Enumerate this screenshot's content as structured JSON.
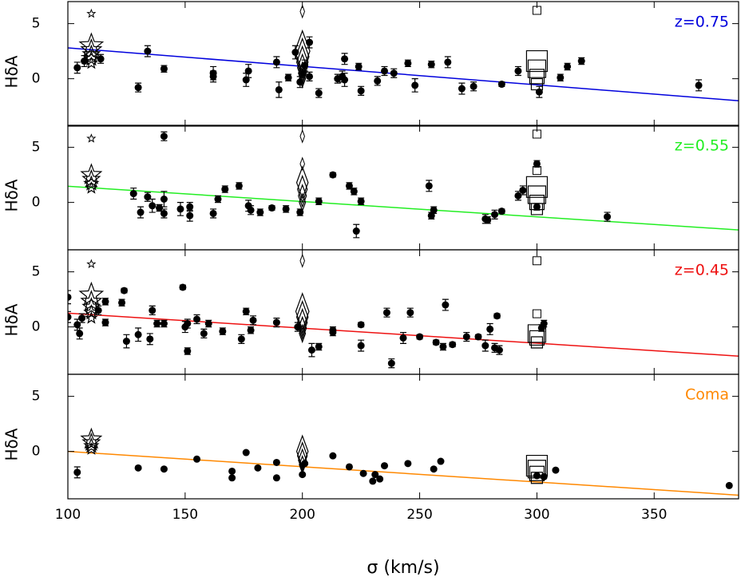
{
  "chart_data": [
    {
      "type": "scatter",
      "label": "z=0.75",
      "color": "#0000dd",
      "ylabel": "HδA",
      "xlim": [
        100,
        386
      ],
      "ylim": [
        -4.3,
        7.0
      ],
      "xticks": [
        100,
        150,
        200,
        250,
        300,
        350
      ],
      "yticks": [
        0,
        5
      ],
      "x": [
        104,
        107,
        114,
        130,
        134,
        141,
        162,
        162,
        176,
        177,
        189,
        190,
        194,
        197,
        199,
        200,
        201,
        203,
        203,
        207,
        215,
        217,
        218,
        218,
        224,
        225,
        232,
        235,
        239,
        245,
        248,
        255,
        262,
        268,
        273,
        285,
        292,
        301,
        310,
        313,
        319,
        369
      ],
      "values": [
        1.0,
        1.6,
        1.8,
        -0.8,
        2.5,
        0.9,
        0.5,
        0.2,
        -0.1,
        0.7,
        1.5,
        -1.0,
        0.1,
        2.4,
        -0.3,
        0.5,
        1.2,
        3.3,
        0.2,
        -1.3,
        0.0,
        0.2,
        1.8,
        -0.1,
        1.1,
        -1.1,
        -0.2,
        0.7,
        0.5,
        1.4,
        -0.6,
        1.3,
        1.5,
        -0.9,
        -0.7,
        -0.5,
        0.7,
        -1.2,
        0.1,
        1.1,
        1.6,
        -0.6
      ],
      "errors": [
        0.5,
        0.5,
        0.4,
        0.4,
        0.5,
        0.3,
        0.6,
        0.5,
        0.6,
        0.6,
        0.5,
        0.7,
        0.3,
        0.6,
        0.5,
        0.4,
        0.5,
        0.5,
        0.4,
        0.4,
        0.4,
        0.5,
        0.5,
        0.6,
        0.3,
        0.4,
        0.4,
        0.4,
        0.4,
        0.3,
        0.6,
        0.3,
        0.5,
        0.5,
        0.4,
        0.2,
        0.4,
        0.5,
        0.3,
        0.3,
        0.3,
        0.5
      ],
      "fit": {
        "x": [
          100,
          386
        ],
        "y": [
          2.8,
          -2.0
        ]
      },
      "stars": {
        "x": 110,
        "values": [
          1.4,
          1.8,
          2.2,
          2.6,
          3.0
        ],
        "outliers": [
          5.9
        ]
      },
      "diamonds": {
        "x": 200,
        "values": [
          0.0,
          0.5,
          1.0,
          1.5,
          2.0,
          2.5
        ],
        "outliers": [
          6.1
        ]
      },
      "squares": {
        "x": 300,
        "values": [
          -0.5,
          0.2,
          0.9,
          1.6
        ],
        "outliers": [
          6.2
        ]
      }
    },
    {
      "type": "scatter",
      "label": "z=0.55",
      "color": "#22ee22",
      "ylabel": "HδA",
      "xlim": [
        100,
        386
      ],
      "ylim": [
        -4.3,
        7.0
      ],
      "xticks": [
        100,
        150,
        200,
        250,
        300,
        350
      ],
      "yticks": [
        0,
        5
      ],
      "x": [
        128,
        131,
        134,
        136,
        139,
        141,
        141,
        141,
        148,
        152,
        152,
        162,
        164,
        167,
        173,
        177,
        178,
        182,
        187,
        193,
        199,
        207,
        213,
        220,
        222,
        223,
        225,
        254,
        255,
        256,
        278,
        279,
        282,
        285,
        292,
        294,
        300,
        300,
        330
      ],
      "values": [
        0.8,
        -0.9,
        0.5,
        -0.3,
        -0.5,
        0.3,
        -1.0,
        6.0,
        -0.6,
        -0.4,
        -1.2,
        -1.0,
        0.3,
        1.2,
        1.5,
        -0.3,
        -0.7,
        -0.9,
        -0.5,
        -0.6,
        -0.9,
        0.1,
        2.5,
        1.5,
        1.0,
        -2.6,
        0.1,
        1.5,
        -1.2,
        -0.7,
        -1.5,
        -1.6,
        -1.1,
        -0.8,
        0.6,
        1.1,
        3.5,
        -0.4,
        -1.3
      ],
      "errors": [
        0.5,
        0.5,
        0.4,
        0.6,
        0.3,
        0.7,
        0.4,
        0.4,
        0.6,
        0.4,
        0.5,
        0.4,
        0.3,
        0.3,
        0.3,
        0.5,
        0.4,
        0.3,
        0.2,
        0.3,
        0.3,
        0.3,
        0.2,
        0.3,
        0.3,
        0.6,
        0.3,
        0.5,
        0.3,
        0.3,
        0.4,
        0.3,
        0.4,
        0.2,
        0.4,
        0.4,
        0.3,
        0.3,
        0.4
      ],
      "fit": {
        "x": [
          100,
          386
        ],
        "y": [
          1.47,
          -2.5
        ]
      },
      "stars": {
        "x": 110,
        "values": [
          1.3,
          1.7,
          2.1,
          2.5
        ],
        "outliers": [
          5.8
        ]
      },
      "diamonds": {
        "x": 200,
        "values": [
          0.0,
          0.6,
          1.2,
          1.8
        ],
        "outliers": [
          3.5,
          6.0
        ]
      },
      "squares": {
        "x": 300,
        "values": [
          -0.6,
          0.0,
          0.7,
          1.4
        ],
        "outliers": [
          2.9,
          6.2
        ]
      }
    },
    {
      "type": "scatter",
      "label": "z=0.45",
      "color": "#ee1111",
      "ylabel": "HδA",
      "xlim": [
        100,
        386
      ],
      "ylim": [
        -4.3,
        7.0
      ],
      "xticks": [
        100,
        150,
        200,
        250,
        300,
        350
      ],
      "yticks": [
        0,
        5
      ],
      "x": [
        100,
        100,
        104,
        105,
        106,
        113,
        116,
        116,
        123,
        124,
        125,
        130,
        135,
        136,
        138,
        141,
        149,
        150,
        151,
        151,
        155,
        158,
        160,
        166,
        174,
        176,
        178,
        179,
        189,
        198,
        204,
        207,
        213,
        213,
        225,
        225,
        236,
        238,
        243,
        246,
        250,
        257,
        260,
        261,
        264,
        270,
        275,
        278,
        280,
        282,
        283,
        284,
        302,
        303
      ],
      "values": [
        2.7,
        0.9,
        0.2,
        -0.6,
        0.8,
        1.5,
        0.4,
        2.3,
        2.2,
        3.3,
        -1.3,
        -0.7,
        -1.1,
        1.5,
        0.3,
        0.3,
        3.6,
        0.0,
        -2.2,
        0.3,
        0.7,
        -0.6,
        0.3,
        -0.4,
        -1.1,
        1.4,
        -0.3,
        0.6,
        0.4,
        0.0,
        -2.1,
        -1.8,
        -0.3,
        -0.5,
        0.2,
        -1.7,
        1.3,
        -3.3,
        -1.0,
        1.3,
        -0.9,
        -1.4,
        -1.8,
        2.0,
        -1.6,
        -0.9,
        -0.9,
        -1.7,
        -0.2,
        -1.9,
        1.0,
        -2.1,
        -0.1,
        0.3
      ],
      "errors": [
        0.6,
        0.5,
        0.5,
        0.5,
        0.4,
        0.4,
        0.3,
        0.3,
        0.3,
        0.2,
        0.6,
        0.6,
        0.5,
        0.4,
        0.3,
        0.3,
        0.2,
        0.5,
        0.3,
        0.4,
        0.4,
        0.4,
        0.3,
        0.3,
        0.4,
        0.3,
        0.3,
        0.4,
        0.4,
        0.4,
        0.6,
        0.3,
        0.3,
        0.3,
        0.2,
        0.5,
        0.4,
        0.4,
        0.5,
        0.4,
        0.2,
        0.2,
        0.3,
        0.5,
        0.2,
        0.4,
        0.2,
        0.5,
        0.5,
        0.4,
        0.2,
        0.4,
        0.3,
        0.3
      ],
      "fit": {
        "x": [
          100,
          386
        ],
        "y": [
          1.25,
          -2.65
        ]
      },
      "stars": {
        "x": 110,
        "values": [
          0.8,
          1.3,
          1.8,
          2.3,
          2.9
        ],
        "outliers": [
          5.7
        ]
      },
      "diamonds": {
        "x": 200,
        "values": [
          -0.6,
          -0.1,
          0.4,
          0.9,
          1.4
        ],
        "outliers": [
          6.0
        ]
      },
      "squares": {
        "x": 300,
        "values": [
          -1.4,
          -1.0,
          -0.6
        ],
        "outliers": [
          1.2,
          6.0
        ]
      }
    },
    {
      "type": "scatter",
      "label": "Coma",
      "color": "#ff8800",
      "ylabel": "HδA",
      "xlabel": "σ (km/s)",
      "xlim": [
        100,
        386
      ],
      "ylim": [
        -4.3,
        7.0
      ],
      "xticks": [
        100,
        150,
        200,
        250,
        300,
        350
      ],
      "yticks": [
        0,
        5
      ],
      "x": [
        104,
        130,
        141,
        155,
        170,
        170,
        176,
        181,
        189,
        189,
        200,
        201,
        213,
        220,
        226,
        230,
        231,
        233,
        235,
        245,
        256,
        259,
        300,
        303,
        308,
        382
      ],
      "values": [
        -1.9,
        -1.5,
        -1.6,
        -0.7,
        -1.8,
        -2.4,
        -0.1,
        -1.5,
        -1.0,
        -2.4,
        -2.1,
        -1.1,
        -0.4,
        -1.4,
        -2.0,
        -2.7,
        -2.1,
        -2.5,
        -1.3,
        -1.1,
        -1.6,
        -0.9,
        -2.2,
        -2.3,
        -1.7,
        -3.1
      ],
      "errors": [
        0.5,
        0.1,
        0.1,
        0.1,
        0.1,
        0.1,
        0.1,
        0.1,
        0.1,
        0.1,
        0.1,
        0.1,
        0.1,
        0.1,
        0.1,
        0.1,
        0.1,
        0.1,
        0.1,
        0.1,
        0.1,
        0.1,
        0.1,
        0.1,
        0.1,
        0.1
      ],
      "fit": {
        "x": [
          100,
          386
        ],
        "y": [
          0.0,
          -3.97
        ]
      },
      "stars": {
        "x": 110,
        "values": [
          0.2,
          0.5,
          0.8,
          1.1
        ],
        "outliers": []
      },
      "diamonds": {
        "x": 200,
        "values": [
          -1.2,
          -0.8,
          -0.4,
          0.0
        ],
        "outliers": []
      },
      "squares": {
        "x": 300,
        "values": [
          -2.4,
          -2.0,
          -1.6,
          -1.3
        ],
        "outliers": []
      }
    }
  ]
}
